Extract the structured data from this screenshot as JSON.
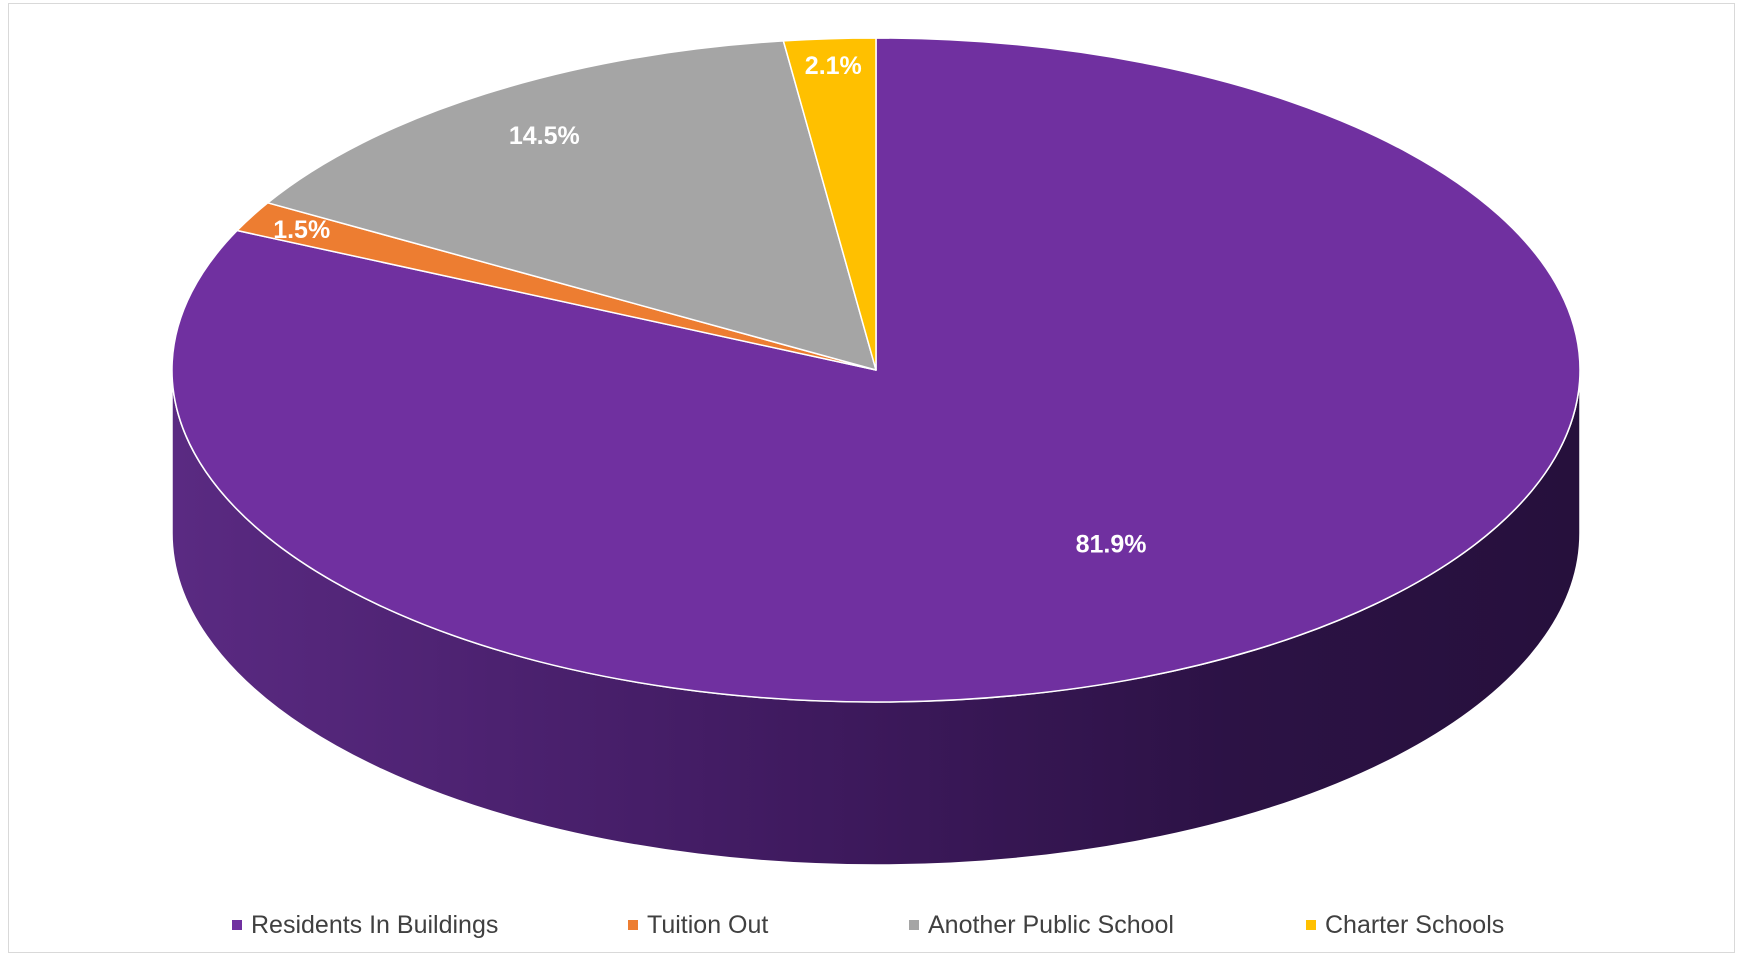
{
  "chart_data": {
    "type": "pie",
    "style": "3d",
    "start_angle": "12 o'clock",
    "direction": "clockwise",
    "slices": [
      {
        "name": "Residents In Buildings",
        "value": 81.9,
        "label": "81.9%",
        "color": "#7030A0"
      },
      {
        "name": "Tuition Out",
        "value": 1.5,
        "label": "1.5%",
        "color": "#ED7D31"
      },
      {
        "name": "Another Public School",
        "value": 14.5,
        "label": "14.5%",
        "color": "#A5A5A5"
      },
      {
        "name": "Charter Schools",
        "value": 2.1,
        "label": "2.1%",
        "color": "#FFC000"
      }
    ],
    "legend_position": "bottom"
  }
}
